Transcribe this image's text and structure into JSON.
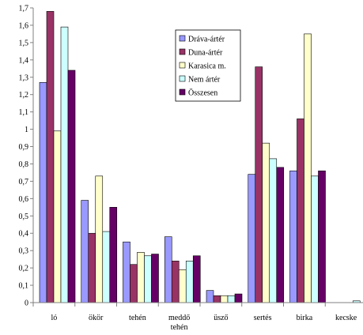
{
  "chart_data": {
    "type": "bar",
    "title": "",
    "xlabel": "",
    "ylabel": "",
    "ylim": [
      0,
      1.7
    ],
    "yticks": [
      "0",
      "0,1",
      "0,2",
      "0,3",
      "0,4",
      "0,5",
      "0,6",
      "0,7",
      "0,8",
      "0,9",
      "1",
      "1,1",
      "1,2",
      "1,3",
      "1,4",
      "1,5",
      "1,6",
      "1,7"
    ],
    "categories": [
      "ló",
      "ökör",
      "tehén",
      "meddő tehén",
      "üsző",
      "sertés",
      "birka",
      "kecske"
    ],
    "legend_position": "top-center",
    "grid": false,
    "series": [
      {
        "name": "Dráva-ártér",
        "color": "#9999ff",
        "values": [
          1.27,
          0.59,
          0.35,
          0.38,
          0.07,
          0.74,
          0.76,
          0.0
        ]
      },
      {
        "name": "Duna-ártér",
        "color": "#993366",
        "values": [
          1.68,
          0.4,
          0.22,
          0.24,
          0.04,
          1.36,
          1.06,
          0.0
        ]
      },
      {
        "name": "Karasica m.",
        "color": "#ffffcc",
        "values": [
          0.99,
          0.73,
          0.29,
          0.19,
          0.04,
          0.92,
          1.55,
          0.0
        ]
      },
      {
        "name": "Nem ártér",
        "color": "#ccffff",
        "values": [
          1.59,
          0.41,
          0.27,
          0.24,
          0.04,
          0.83,
          0.73,
          0.01
        ]
      },
      {
        "name": "Összesen",
        "color": "#660066",
        "values": [
          1.34,
          0.55,
          0.28,
          0.27,
          0.05,
          0.78,
          0.76,
          0.0
        ]
      }
    ]
  }
}
